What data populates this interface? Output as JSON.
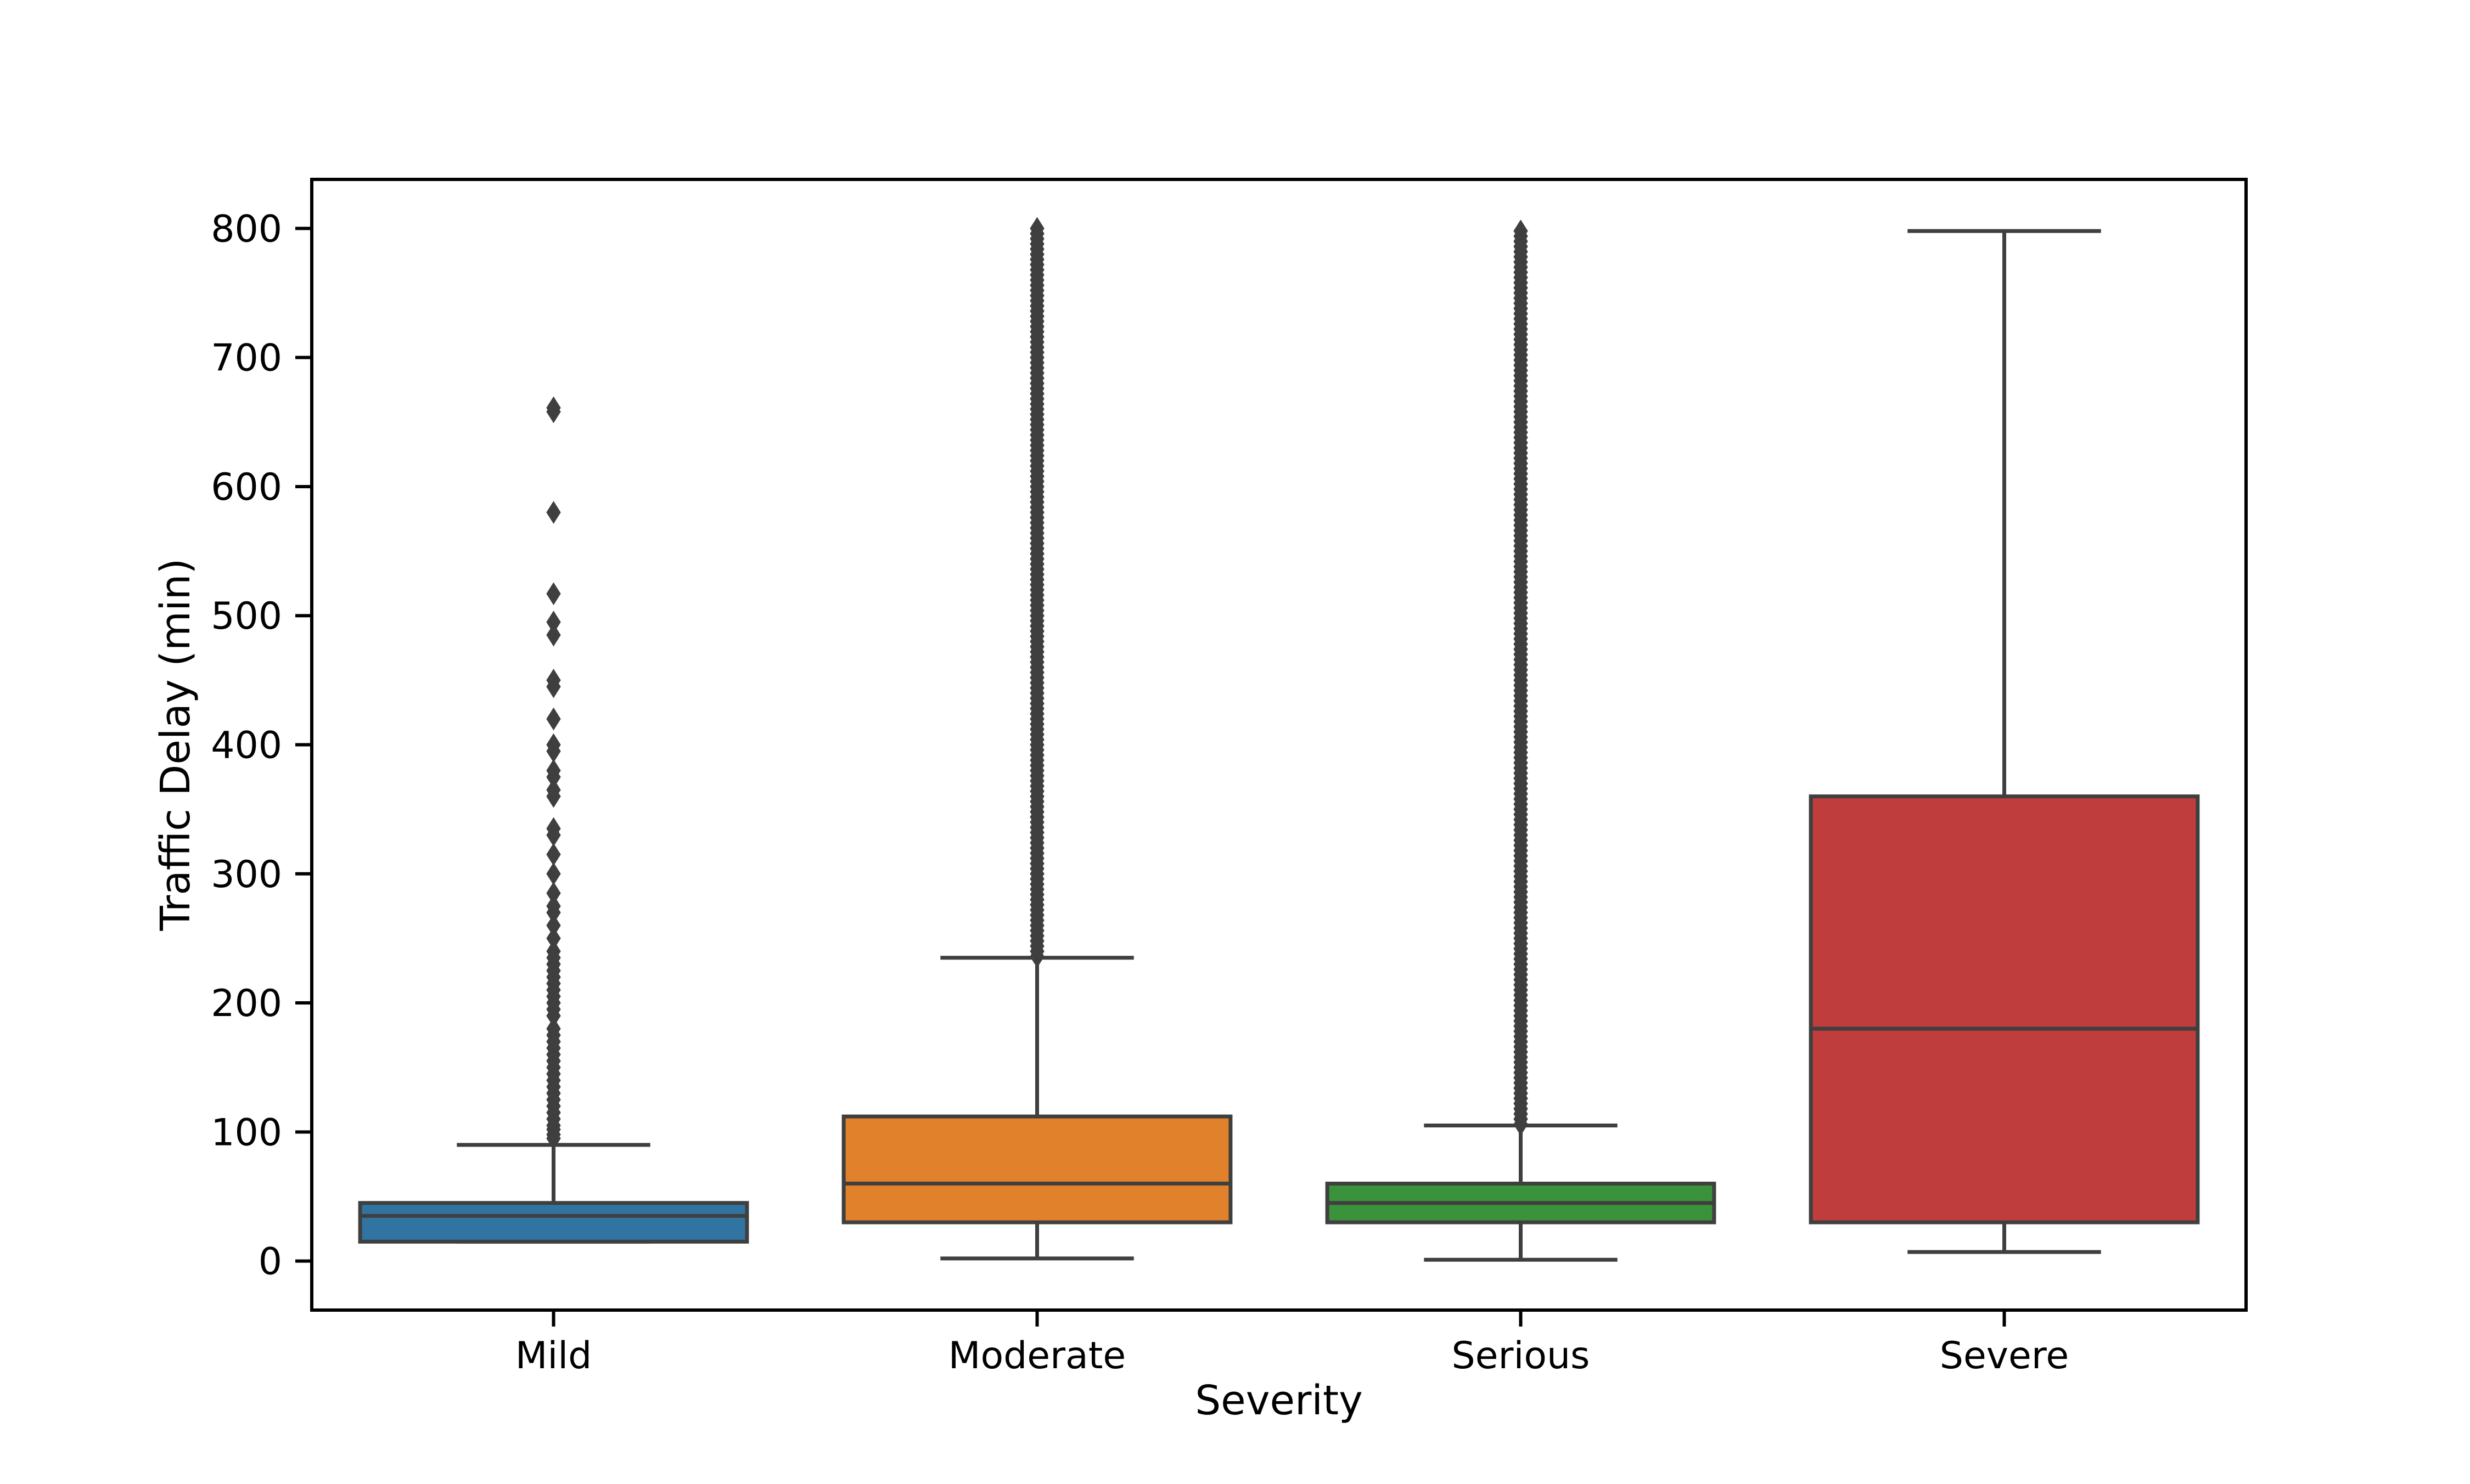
{
  "chart_data": {
    "type": "box",
    "title": "",
    "xlabel": "Severity",
    "ylabel": "Traffic Delay (min)",
    "ylim": [
      -38,
      838
    ],
    "yticks": [
      0,
      100,
      200,
      300,
      400,
      500,
      600,
      700,
      800
    ],
    "ytick_labels": [
      "0",
      "100",
      "200",
      "300",
      "400",
      "500",
      "600",
      "700",
      "800"
    ],
    "grid": false,
    "legend": "none",
    "categories": [
      "Mild",
      "Moderate",
      "Serious",
      "Severe"
    ],
    "series": [
      {
        "category": "Mild",
        "color": "#3274a1",
        "whisker_low": 15,
        "q1": 15,
        "median": 35,
        "q3": 45,
        "whisker_high": 90,
        "outliers": [
          95,
          98,
          102,
          105,
          110,
          115,
          120,
          125,
          130,
          135,
          140,
          145,
          150,
          155,
          160,
          165,
          170,
          175,
          180,
          190,
          195,
          200,
          205,
          210,
          215,
          220,
          225,
          230,
          235,
          240,
          250,
          260,
          270,
          275,
          285,
          300,
          315,
          330,
          335,
          360,
          365,
          375,
          380,
          395,
          400,
          420,
          445,
          450,
          485,
          495,
          517,
          580,
          658,
          661
        ],
        "outlier_band": null
      },
      {
        "category": "Moderate",
        "color": "#e1812c",
        "whisker_low": 2,
        "q1": 30,
        "median": 60,
        "q3": 112,
        "whisker_high": 235,
        "outliers": [],
        "outlier_band": [
          236,
          800
        ]
      },
      {
        "category": "Serious",
        "color": "#3a923a",
        "whisker_low": 1,
        "q1": 30,
        "median": 45,
        "q3": 60,
        "whisker_high": 105,
        "outliers": [],
        "outlier_band": [
          106,
          800
        ]
      },
      {
        "category": "Severe",
        "color": "#c03d3e",
        "whisker_low": 7,
        "q1": 30,
        "median": 180,
        "q3": 360,
        "whisker_high": 798,
        "outliers": [],
        "outlier_band": null
      }
    ]
  }
}
